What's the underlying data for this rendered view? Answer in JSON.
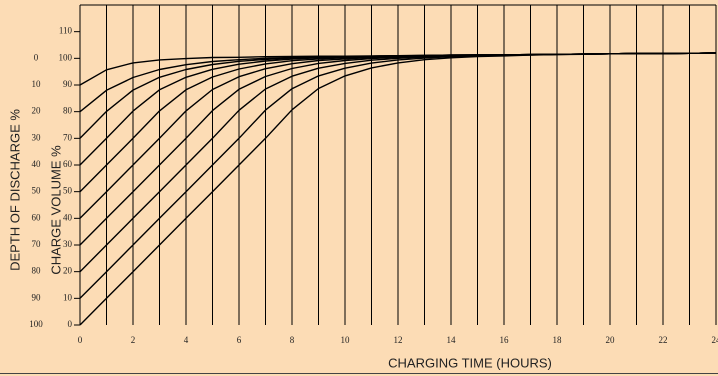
{
  "chart_data": {
    "type": "line",
    "xlabel": "CHARGING TIME (HOURS)",
    "ylabel": "CHARGE VOLUME %",
    "y2label": "DEPTH OF DISCHARGE %",
    "x": [
      0,
      1,
      2,
      3,
      4,
      5,
      6,
      7,
      8,
      9,
      10,
      11,
      12,
      13,
      14,
      15,
      16,
      17,
      18,
      19,
      20,
      21,
      22,
      23,
      24
    ],
    "series": [
      {
        "color": "#000000",
        "values": [
          90,
          95.7,
          98.3,
          99.4,
          99.9,
          100.3,
          100.4,
          100.6,
          100.7,
          100.8,
          100.8,
          100.9,
          101.0,
          101.1,
          101.2,
          101.3,
          101.3,
          101.4,
          101.5,
          101.6,
          101.7,
          101.8,
          101.8,
          101.9,
          102.0
        ]
      },
      {
        "color": "#000000",
        "values": [
          80,
          88.0,
          92.8,
          95.8,
          97.6,
          98.8,
          99.5,
          100.0,
          100.3,
          100.6,
          100.7,
          100.8,
          101.0,
          101.1,
          101.2,
          101.3,
          101.3,
          101.4,
          101.5,
          101.6,
          101.7,
          101.8,
          101.8,
          101.9,
          102.0
        ]
      },
      {
        "color": "#000000",
        "values": [
          70,
          80.1,
          88.1,
          92.9,
          95.8,
          97.7,
          98.9,
          99.6,
          100.1,
          100.4,
          100.6,
          100.8,
          100.9,
          101.1,
          101.2,
          101.3,
          101.3,
          101.4,
          101.5,
          101.6,
          101.7,
          101.8,
          101.8,
          101.9,
          102.0
        ]
      },
      {
        "color": "#000000",
        "values": [
          60,
          70,
          80.2,
          88.2,
          92.9,
          95.9,
          97.8,
          99.0,
          99.7,
          100.2,
          100.4,
          100.7,
          100.9,
          101.0,
          101.2,
          101.3,
          101.3,
          101.4,
          101.5,
          101.6,
          101.7,
          101.8,
          101.8,
          101.9,
          102.0
        ]
      },
      {
        "color": "#000000",
        "values": [
          50,
          60,
          70,
          80.3,
          88.2,
          93.0,
          96.0,
          97.9,
          99.1,
          99.8,
          100.2,
          100.5,
          100.8,
          101.0,
          101.1,
          101.3,
          101.3,
          101.4,
          101.5,
          101.6,
          101.7,
          101.8,
          101.8,
          101.9,
          102.0
        ]
      },
      {
        "color": "#000000",
        "values": [
          40,
          50,
          60,
          70,
          80.3,
          88.3,
          93.1,
          96.1,
          98.0,
          99.2,
          99.8,
          100.3,
          100.6,
          100.9,
          101.1,
          101.2,
          101.3,
          101.4,
          101.5,
          101.6,
          101.7,
          101.8,
          101.8,
          101.9,
          102.0
        ]
      },
      {
        "color": "#000000",
        "values": [
          30,
          40,
          50,
          60,
          70,
          80.4,
          88.4,
          93.2,
          96.2,
          98.1,
          99.2,
          99.9,
          100.4,
          100.7,
          101.0,
          101.2,
          101.2,
          101.4,
          101.5,
          101.6,
          101.7,
          101.8,
          101.8,
          101.9,
          102.0
        ]
      },
      {
        "color": "#000000",
        "values": [
          20,
          30,
          40,
          50,
          60,
          70,
          80.5,
          88.5,
          93.3,
          96.3,
          98.1,
          99.3,
          100.0,
          100.5,
          100.8,
          101.1,
          101.2,
          101.3,
          101.5,
          101.6,
          101.7,
          101.8,
          101.8,
          101.9,
          102.0
        ]
      },
      {
        "color": "#000000",
        "values": [
          10,
          20,
          30,
          40,
          50,
          60,
          70,
          80.6,
          88.6,
          93.4,
          96.3,
          98.2,
          99.4,
          100.1,
          100.6,
          100.9,
          101.1,
          101.3,
          101.4,
          101.6,
          101.7,
          101.8,
          101.8,
          101.9,
          102.0
        ]
      },
      {
        "color": "#000000",
        "values": [
          0,
          10,
          20,
          30,
          40,
          50,
          60,
          70,
          80.7,
          88.7,
          93.4,
          96.4,
          98.3,
          99.5,
          100.2,
          100.7,
          100.9,
          101.2,
          101.4,
          101.5,
          101.7,
          101.8,
          101.8,
          101.9,
          102.0
        ]
      }
    ],
    "xlim": [
      0,
      24
    ],
    "xticks": [
      0,
      2,
      4,
      6,
      8,
      10,
      12,
      14,
      16,
      18,
      20,
      22,
      24
    ],
    "x_minor_ticks": [
      1,
      3,
      5,
      7,
      9,
      11,
      13,
      15,
      17,
      19,
      21,
      23
    ],
    "ylim": [
      0,
      120
    ],
    "yticks": [
      0,
      10,
      20,
      30,
      40,
      50,
      60,
      70,
      80,
      90,
      100,
      110
    ],
    "y2lim": [
      100,
      -20
    ],
    "y2ticks": [
      0,
      10,
      20,
      30,
      40,
      50,
      60,
      70,
      80,
      90,
      100
    ],
    "background": "#fcdcb5"
  }
}
